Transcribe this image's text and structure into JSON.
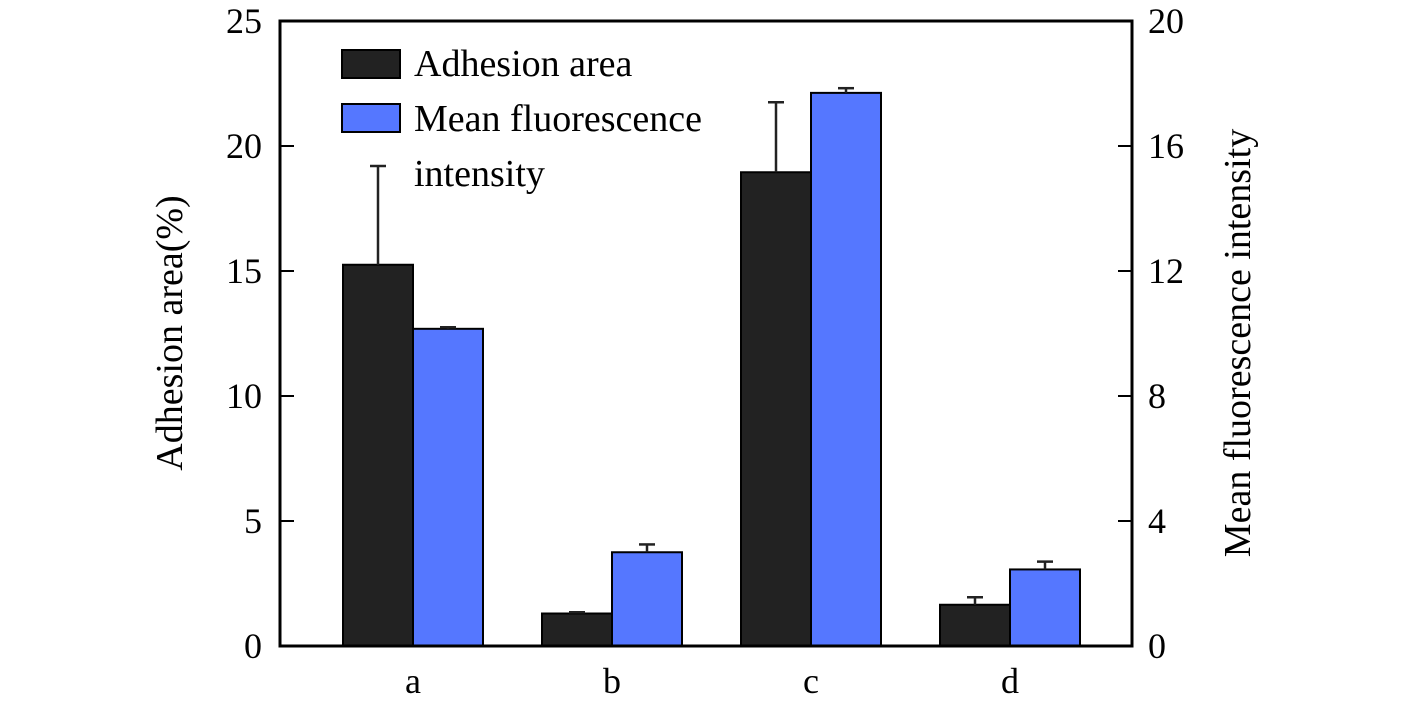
{
  "chart_data": {
    "type": "bar",
    "categories": [
      "a",
      "b",
      "c",
      "d"
    ],
    "series": [
      {
        "name": "Adhesion area",
        "axis": "left",
        "color": "#222222",
        "values": [
          15.25,
          1.3,
          18.95,
          1.65
        ],
        "errors": [
          3.95,
          0.05,
          2.8,
          0.3
        ]
      },
      {
        "name": "Mean fluorescence intensity",
        "legend_lines": [
          "Mean fluorescence",
          "intensity"
        ],
        "axis": "right",
        "color": "#5577ff",
        "values": [
          10.15,
          3.0,
          17.7,
          2.45
        ],
        "errors": [
          0.05,
          0.25,
          0.15,
          0.25
        ]
      }
    ],
    "ylabel": "Adhesion area(%)",
    "y2label": "Mean fluorescence intensity",
    "xlabel": "",
    "ylim": [
      0,
      25
    ],
    "y2lim": [
      0,
      20
    ],
    "yticks": [
      0,
      5,
      10,
      15,
      20,
      25
    ],
    "y2ticks": [
      0,
      4,
      8,
      12,
      16,
      20
    ],
    "grid": false,
    "legend_position": "top-left"
  }
}
